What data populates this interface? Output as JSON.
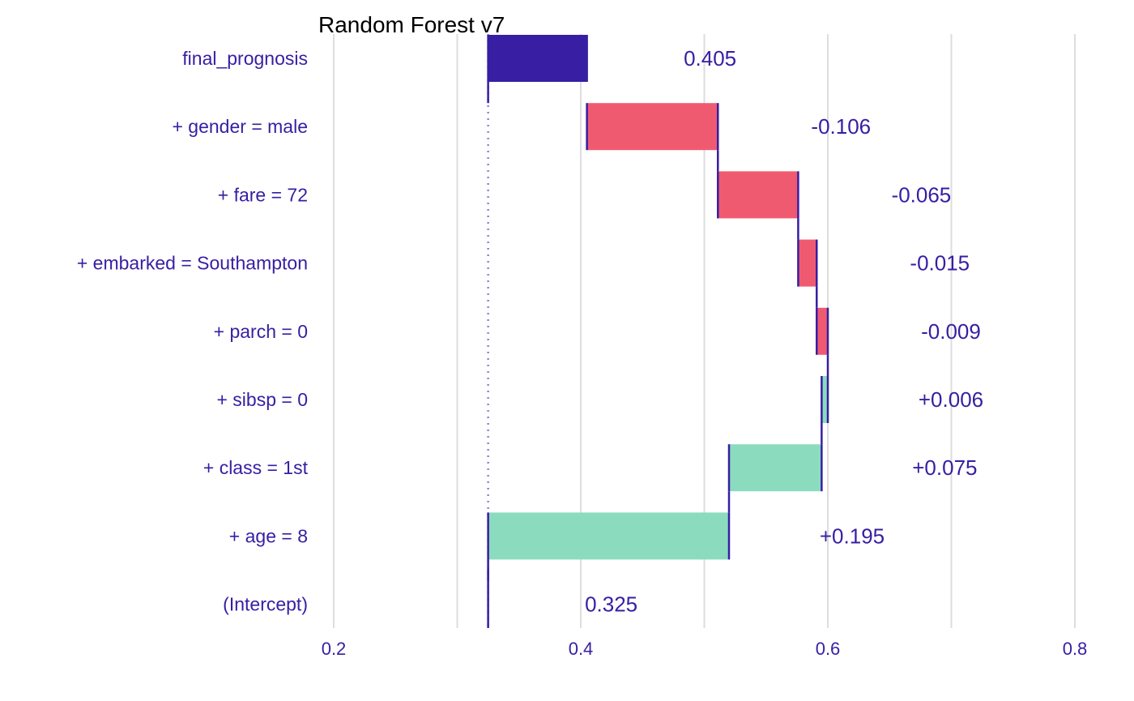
{
  "chart_data": {
    "type": "bar",
    "subtype": "waterfall (break-down)",
    "title": "Random Forest v7",
    "xlim": [
      0.2,
      0.8
    ],
    "x_ticks": [
      0.2,
      0.4,
      0.6,
      0.8
    ],
    "x_tick_labels": [
      "0.2",
      "0.4",
      "0.6",
      "0.8"
    ],
    "grid": true,
    "baseline": 0.325,
    "rows": [
      {
        "label": "final_prognosis",
        "start": 0.325,
        "end": 0.405,
        "display": "0.405",
        "kind": "prediction"
      },
      {
        "label": "+ gender = male",
        "start": 0.511,
        "end": 0.405,
        "display": "-0.106",
        "kind": "negative"
      },
      {
        "label": "+ fare = 72",
        "start": 0.576,
        "end": 0.511,
        "display": "-0.065",
        "kind": "negative"
      },
      {
        "label": "+ embarked = Southampton",
        "start": 0.591,
        "end": 0.576,
        "display": "-0.015",
        "kind": "negative"
      },
      {
        "label": "+ parch = 0",
        "start": 0.6,
        "end": 0.591,
        "display": "-0.009",
        "kind": "negative"
      },
      {
        "label": "+ sibsp = 0",
        "start": 0.595,
        "end": 0.6,
        "display": "+0.006",
        "kind": "positive"
      },
      {
        "label": "+ class = 1st",
        "start": 0.52,
        "end": 0.595,
        "display": "+0.075",
        "kind": "positive"
      },
      {
        "label": "+ age = 8",
        "start": 0.325,
        "end": 0.52,
        "display": "+0.195",
        "kind": "positive"
      },
      {
        "label": "(Intercept)",
        "start": 0.325,
        "end": 0.325,
        "display": "0.325",
        "kind": "intercept"
      }
    ],
    "colors": {
      "prediction": "#371ea3",
      "negative": "#f05a71",
      "positive": "#8bdcbe",
      "text": "#371ea3",
      "grid": "#dddddd",
      "connector": "#371ea3"
    }
  }
}
